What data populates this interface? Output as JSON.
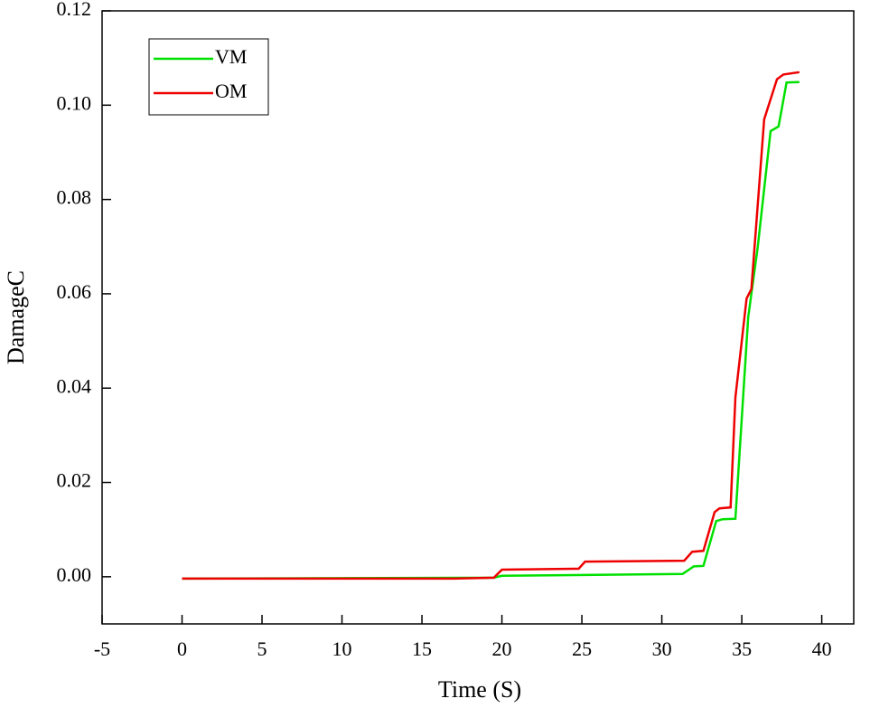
{
  "chart_data": {
    "type": "line",
    "xlabel": "Time (S)",
    "ylabel": "DamageC",
    "xlim": [
      -5,
      42
    ],
    "ylim": [
      -0.01,
      0.12
    ],
    "xticks": [
      -5,
      0,
      5,
      10,
      15,
      20,
      25,
      30,
      35,
      40
    ],
    "yticks": [
      {
        "value": 0,
        "label": "0.00"
      },
      0.02,
      0.04,
      0.06,
      0.08,
      {
        "value": 0.1,
        "label": "0.10"
      },
      0.12
    ],
    "legend": "upper-left",
    "series": [
      {
        "name": "VM",
        "color": "#00e000",
        "x": [
          0,
          19.5,
          20,
          31.3,
          32,
          32.6,
          33.4,
          33.8,
          34.6,
          35.4,
          36,
          36.8,
          37.3,
          37.8,
          38.6
        ],
        "values": [
          -0.0004,
          -0.0002,
          0.0002,
          0.0006,
          0.0022,
          0.0023,
          0.0118,
          0.0122,
          0.0123,
          0.055,
          0.07,
          0.0945,
          0.0955,
          0.1048,
          0.1049
        ]
      },
      {
        "name": "OM",
        "color": "#ee0000",
        "x": [
          0,
          17,
          19.5,
          20,
          24.8,
          25.2,
          31.4,
          31.9,
          32.6,
          33.3,
          33.6,
          34.3,
          34.6,
          35.3,
          35.6,
          36.4,
          37.2,
          37.6,
          38.6
        ],
        "values": [
          -0.0004,
          -0.0004,
          -0.0002,
          0.0015,
          0.0017,
          0.0032,
          0.0034,
          0.0053,
          0.0055,
          0.0137,
          0.0145,
          0.0147,
          0.038,
          0.059,
          0.061,
          0.097,
          0.1055,
          0.1065,
          0.107
        ]
      }
    ]
  }
}
